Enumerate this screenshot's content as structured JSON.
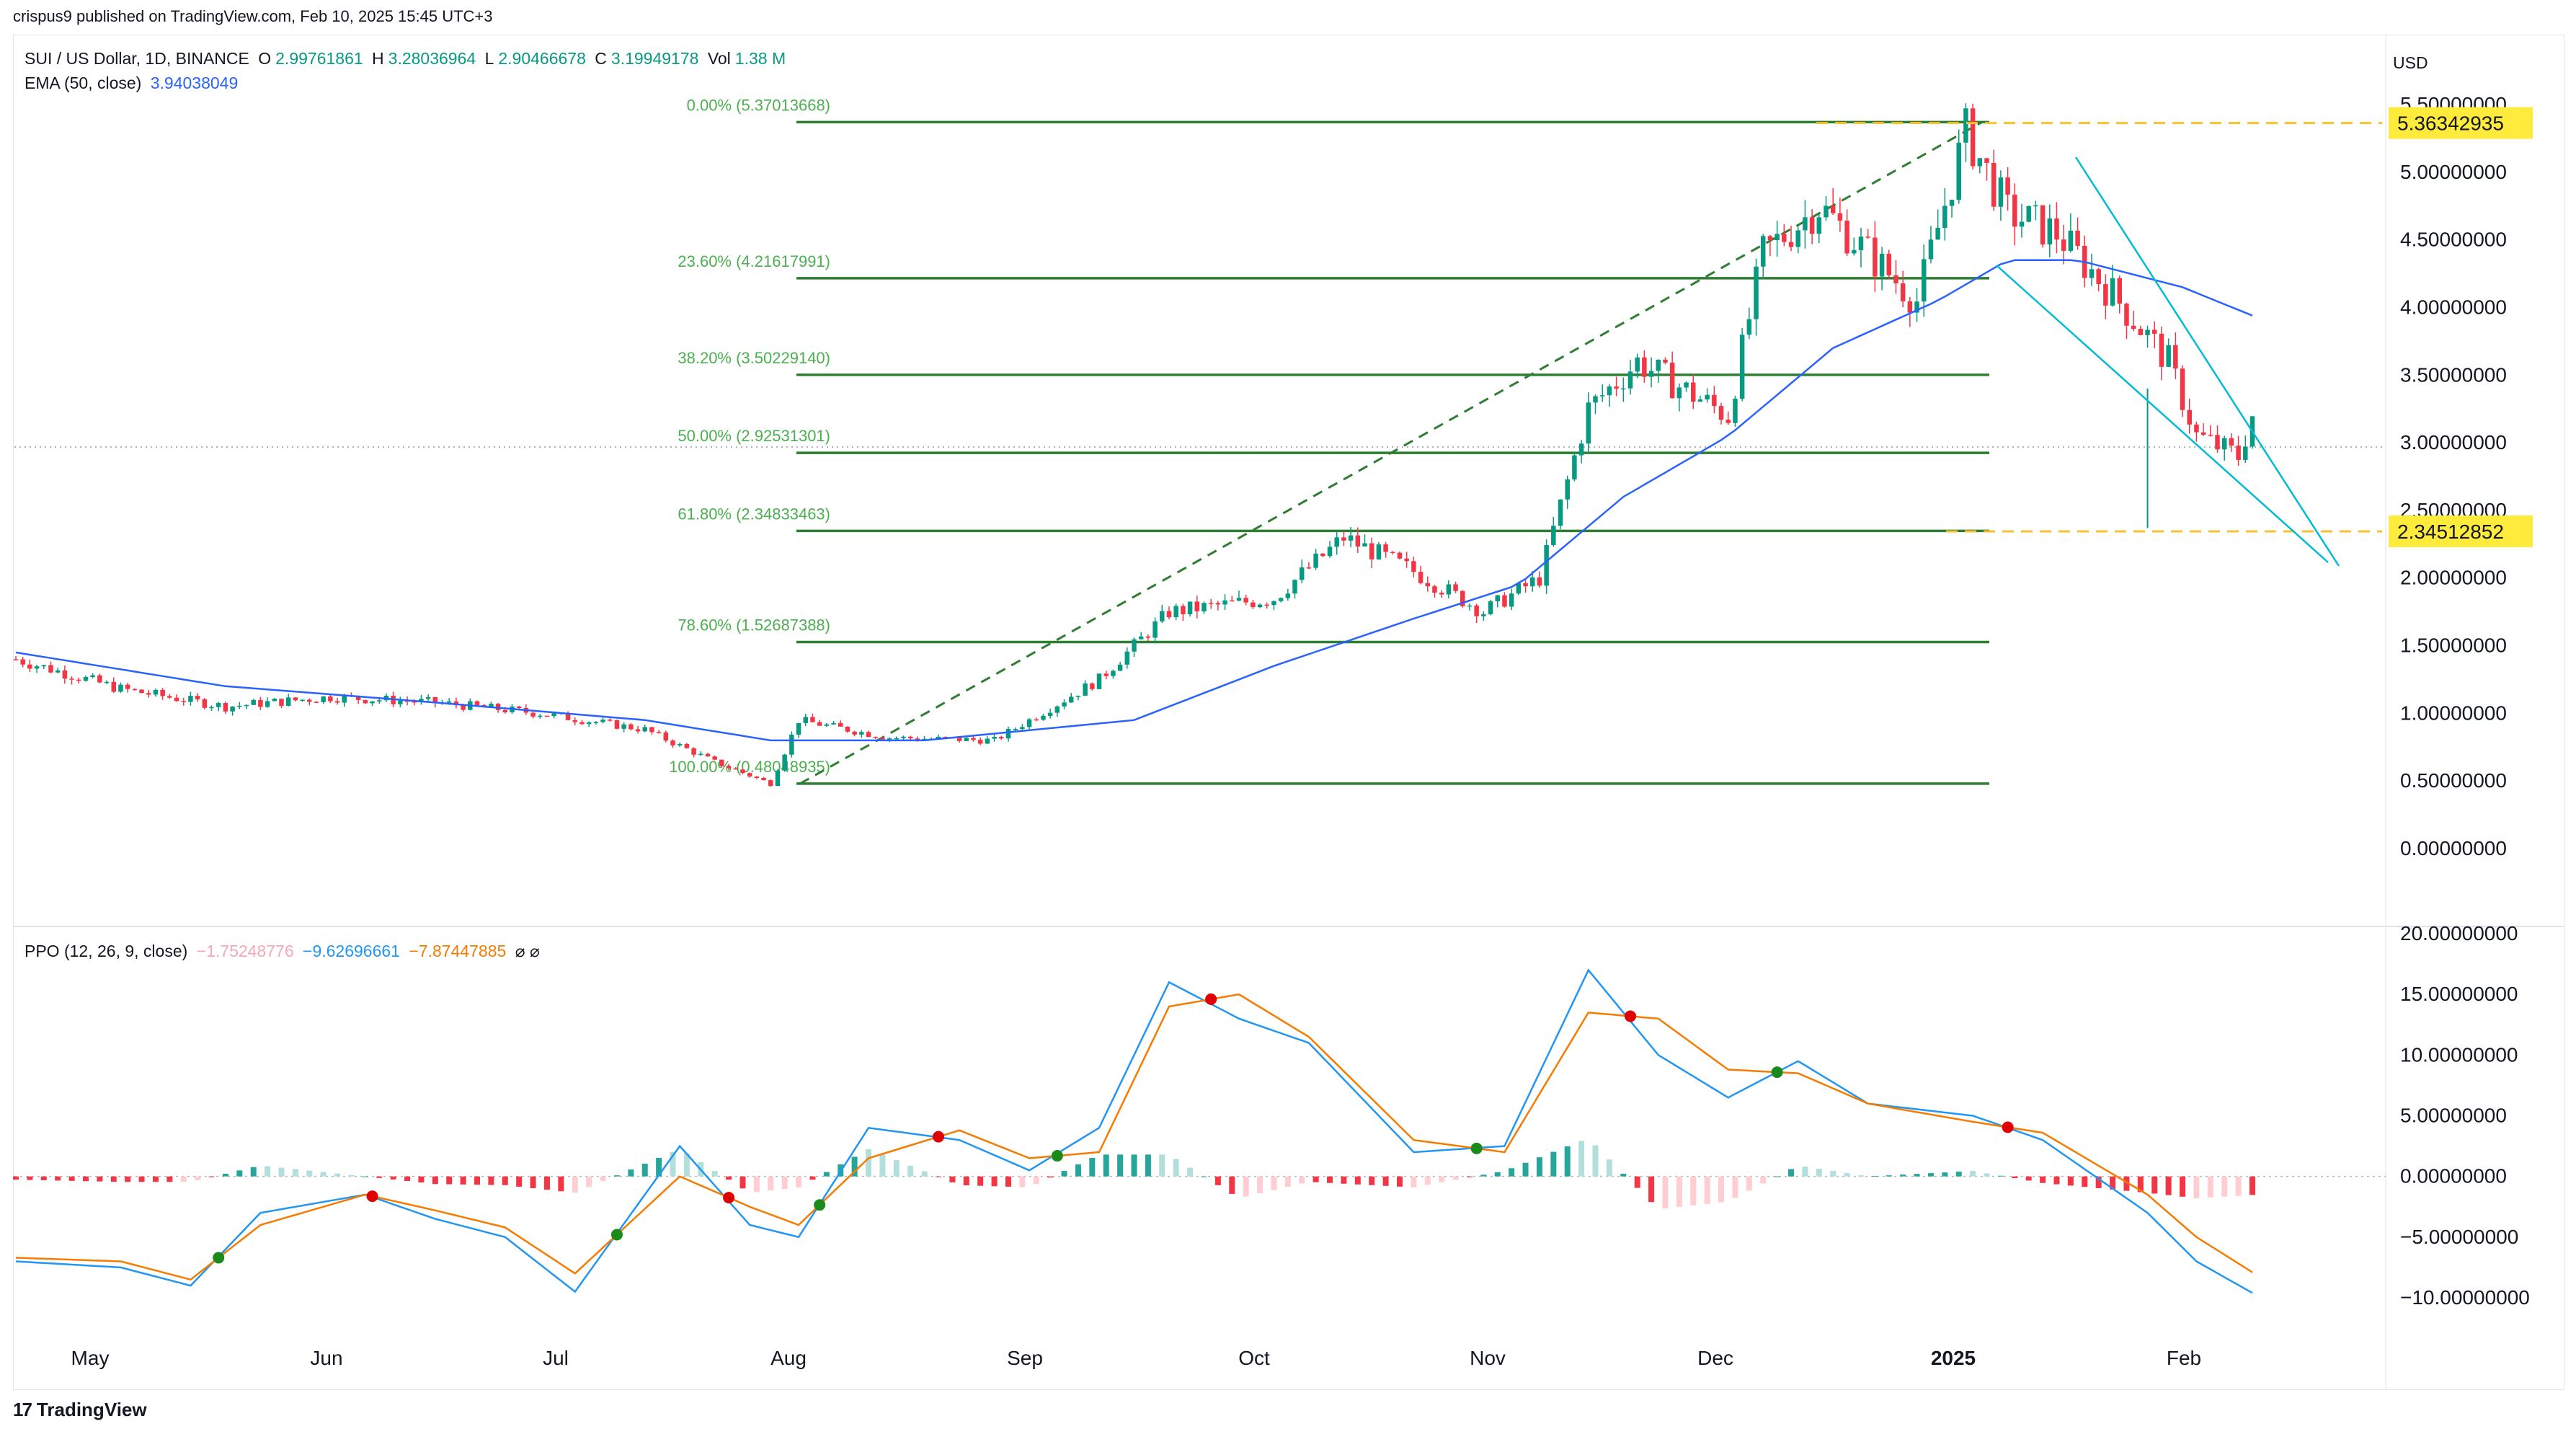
{
  "header": {
    "text": "crispus9 published on TradingView.com, Feb 10, 2025 15:45 UTC+3"
  },
  "legend": {
    "symbol": "SUI / US Dollar, 1D, BINANCE",
    "open_k": "O",
    "open": "2.99761861",
    "high_k": "H",
    "high": "3.28036964",
    "low_k": "L",
    "low": "2.90466678",
    "close_k": "C",
    "close": "3.19949178",
    "vol_k": "Vol",
    "vol": "1.38 M",
    "ema_label": "EMA (50, close)",
    "ema_value": "3.94038049"
  },
  "ppo_legend": {
    "label": "PPO (12, 26, 9, close)",
    "hist": "−1.75248776",
    "ppo": "−9.62696661",
    "signal": "−7.87447885",
    "icons": "⌀ ⌀"
  },
  "currency": "USD",
  "footer": {
    "brand": "TradingView"
  },
  "colors": {
    "up": "#089981",
    "down": "#f23645",
    "ema": "#2962ff",
    "fib": "#2e7d32",
    "ppo": "#2196f3",
    "signal": "#f57c00",
    "marker_yellow": "#ffeb3b",
    "channel": "#00bcd4"
  },
  "chart_data": [
    {
      "type": "candlestick",
      "title": "SUI / US Dollar, 1D, BINANCE",
      "x_ticks": [
        "May",
        "Jun",
        "Jul",
        "Aug",
        "Sep",
        "Oct",
        "Nov",
        "Dec",
        "2025",
        "Feb"
      ],
      "y_ticks": [
        "5.50000000",
        "5.00000000",
        "4.50000000",
        "4.00000000",
        "3.50000000",
        "3.00000000",
        "2.50000000",
        "2.00000000",
        "1.50000000",
        "1.00000000",
        "0.50000000",
        "0.00000000"
      ],
      "ylim": [
        0,
        5.5
      ],
      "price_markers": [
        {
          "value": "5.36342935",
          "level": 5.36342935
        },
        {
          "value": "2.34512852",
          "level": 2.34512852
        }
      ],
      "fib_levels": [
        {
          "label": "0.00% (5.37013668)",
          "level": 5.37013668
        },
        {
          "label": "23.60% (4.21617991)",
          "level": 4.21617991
        },
        {
          "label": "38.20% (3.50229140)",
          "level": 3.5022914
        },
        {
          "label": "50.00% (2.92531301)",
          "level": 2.92531301
        },
        {
          "label": "61.80% (2.34833463)",
          "level": 2.34833463
        },
        {
          "label": "78.60% (1.52687388)",
          "level": 1.52687388
        },
        {
          "label": "100.00% (0.48048935)",
          "level": 0.48048935
        }
      ],
      "close_series_anchor": [
        [
          0,
          1.4
        ],
        [
          15,
          1.18
        ],
        [
          30,
          1.05
        ],
        [
          45,
          1.12
        ],
        [
          60,
          1.08
        ],
        [
          75,
          1.0
        ],
        [
          90,
          0.88
        ],
        [
          100,
          0.64
        ],
        [
          108,
          0.48
        ],
        [
          112,
          0.95
        ],
        [
          125,
          0.82
        ],
        [
          140,
          0.8
        ],
        [
          155,
          1.25
        ],
        [
          165,
          1.75
        ],
        [
          180,
          1.85
        ],
        [
          190,
          2.3
        ],
        [
          200,
          2.05
        ],
        [
          210,
          1.75
        ],
        [
          218,
          2.0
        ],
        [
          225,
          3.25
        ],
        [
          232,
          3.6
        ],
        [
          245,
          3.2
        ],
        [
          250,
          4.4
        ],
        [
          258,
          4.75
        ],
        [
          265,
          4.4
        ],
        [
          272,
          4.05
        ],
        [
          279,
          5.3
        ],
        [
          285,
          4.7
        ],
        [
          292,
          4.55
        ],
        [
          300,
          4.1
        ],
        [
          308,
          3.6
        ],
        [
          312,
          3.05
        ],
        [
          318,
          2.9
        ],
        [
          320,
          3.2
        ]
      ],
      "ema_anchor": [
        [
          0,
          1.45
        ],
        [
          30,
          1.2
        ],
        [
          60,
          1.08
        ],
        [
          90,
          0.95
        ],
        [
          108,
          0.8
        ],
        [
          130,
          0.8
        ],
        [
          160,
          0.95
        ],
        [
          180,
          1.35
        ],
        [
          200,
          1.7
        ],
        [
          215,
          1.95
        ],
        [
          230,
          2.6
        ],
        [
          245,
          3.05
        ],
        [
          260,
          3.7
        ],
        [
          275,
          4.05
        ],
        [
          285,
          4.35
        ],
        [
          295,
          4.35
        ],
        [
          310,
          4.15
        ],
        [
          320,
          3.94
        ]
      ]
    },
    {
      "type": "line",
      "title": "PPO (12, 26, 9, close)",
      "y_ticks": [
        "20.00000000",
        "15.00000000",
        "10.00000000",
        "5.00000000",
        "0.00000000",
        "−5.00000000",
        "−10.00000000"
      ],
      "ylim": [
        -11,
        20
      ],
      "series": [
        {
          "name": "PPO",
          "anchor": [
            [
              0,
              -7
            ],
            [
              15,
              -7.5
            ],
            [
              25,
              -9
            ],
            [
              35,
              -3
            ],
            [
              50,
              -1.5
            ],
            [
              60,
              -3.5
            ],
            [
              70,
              -5
            ],
            [
              80,
              -9.5
            ],
            [
              95,
              2.5
            ],
            [
              105,
              -4
            ],
            [
              112,
              -5
            ],
            [
              122,
              4
            ],
            [
              135,
              3
            ],
            [
              145,
              0.5
            ],
            [
              155,
              4
            ],
            [
              165,
              16
            ],
            [
              175,
              13
            ],
            [
              185,
              11
            ],
            [
              200,
              2
            ],
            [
              213,
              2.5
            ],
            [
              225,
              17
            ],
            [
              235,
              10
            ],
            [
              245,
              6.5
            ],
            [
              255,
              9.5
            ],
            [
              265,
              6
            ],
            [
              280,
              5
            ],
            [
              290,
              3
            ],
            [
              305,
              -3
            ],
            [
              312,
              -7
            ],
            [
              320,
              -9.6
            ]
          ]
        },
        {
          "name": "Signal",
          "anchor": [
            [
              0,
              -6.7
            ],
            [
              15,
              -7
            ],
            [
              25,
              -8.5
            ],
            [
              35,
              -4
            ],
            [
              50,
              -1.5
            ],
            [
              60,
              -2.8
            ],
            [
              70,
              -4.2
            ],
            [
              80,
              -8
            ],
            [
              95,
              0
            ],
            [
              105,
              -2.5
            ],
            [
              112,
              -4
            ],
            [
              122,
              1.5
            ],
            [
              135,
              3.8
            ],
            [
              145,
              1.5
            ],
            [
              155,
              2
            ],
            [
              165,
              14
            ],
            [
              175,
              15
            ],
            [
              185,
              11.5
            ],
            [
              200,
              3
            ],
            [
              213,
              2
            ],
            [
              225,
              13.5
            ],
            [
              235,
              13
            ],
            [
              245,
              8.8
            ],
            [
              255,
              8.5
            ],
            [
              265,
              6
            ],
            [
              280,
              4.5
            ],
            [
              290,
              3.6
            ],
            [
              305,
              -1.5
            ],
            [
              312,
              -5
            ],
            [
              320,
              -7.9
            ]
          ]
        }
      ]
    }
  ]
}
